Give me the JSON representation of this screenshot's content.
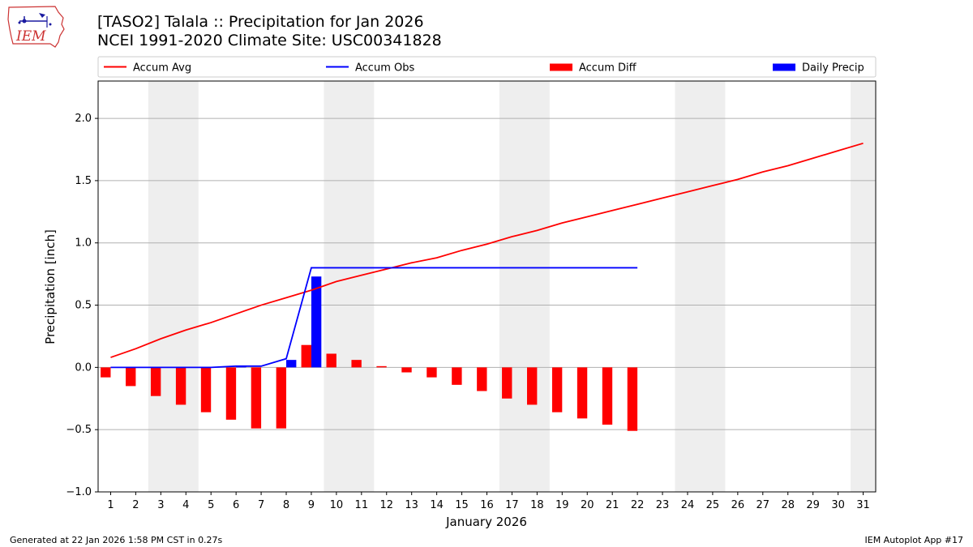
{
  "logo": {
    "text": "IEM"
  },
  "title": {
    "line1": "[TASO2] Talala :: Precipitation for Jan 2026",
    "line2": "NCEI 1991-2020 Climate Site: USC00341828"
  },
  "footer": {
    "left": "Generated at 22 Jan 2026 1:58 PM CST in 0.27s",
    "right": "IEM Autoplot App #17"
  },
  "chart_data": {
    "type": "bar",
    "xlabel": "January 2026",
    "ylabel": "Precipitation [inch]",
    "ylim": [
      -1.0,
      2.3
    ],
    "xlim": [
      0.5,
      31.5
    ],
    "yticks": [
      -1.0,
      -0.5,
      0.0,
      0.5,
      1.0,
      1.5,
      2.0
    ],
    "ytick_labels": [
      "−1.0",
      "−0.5",
      "0.0",
      "0.5",
      "1.0",
      "1.5",
      "2.0"
    ],
    "xticks": [
      1,
      2,
      3,
      4,
      5,
      6,
      7,
      8,
      9,
      10,
      11,
      12,
      13,
      14,
      15,
      16,
      17,
      18,
      19,
      20,
      21,
      22,
      23,
      24,
      25,
      26,
      27,
      28,
      29,
      30,
      31
    ],
    "grid": "horizontal",
    "weekend_shading": [
      [
        2.5,
        4.5
      ],
      [
        9.5,
        11.5
      ],
      [
        16.5,
        18.5
      ],
      [
        23.5,
        25.5
      ],
      [
        30.5,
        31.5
      ]
    ],
    "legend": [
      {
        "label": "Accum Avg",
        "kind": "line",
        "color": "#ff0000"
      },
      {
        "label": "Accum Obs",
        "kind": "line",
        "color": "#0000ff"
      },
      {
        "label": "Accum Diff",
        "kind": "bar",
        "color": "#ff0000"
      },
      {
        "label": "Daily Precip",
        "kind": "bar",
        "color": "#0000ff"
      }
    ],
    "legend_position": "top",
    "series": [
      {
        "name": "Accum Avg",
        "type": "line",
        "color": "#ff0000",
        "x": [
          1,
          2,
          3,
          4,
          5,
          6,
          7,
          8,
          9,
          10,
          11,
          12,
          13,
          14,
          15,
          16,
          17,
          18,
          19,
          20,
          21,
          22,
          23,
          24,
          25,
          26,
          27,
          28,
          29,
          30,
          31
        ],
        "values": [
          0.08,
          0.15,
          0.23,
          0.3,
          0.36,
          0.43,
          0.5,
          0.56,
          0.62,
          0.69,
          0.74,
          0.79,
          0.84,
          0.88,
          0.94,
          0.99,
          1.05,
          1.1,
          1.16,
          1.21,
          1.26,
          1.31,
          1.36,
          1.41,
          1.46,
          1.51,
          1.57,
          1.62,
          1.68,
          1.74,
          1.8
        ]
      },
      {
        "name": "Accum Obs",
        "type": "line",
        "color": "#0000ff",
        "x": [
          1,
          2,
          3,
          4,
          5,
          6,
          7,
          8,
          9,
          10,
          11,
          12,
          13,
          14,
          15,
          16,
          17,
          18,
          19,
          20,
          21,
          22
        ],
        "values": [
          0.0,
          0.0,
          0.0,
          0.0,
          0.0,
          0.01,
          0.01,
          0.07,
          0.8,
          0.8,
          0.8,
          0.8,
          0.8,
          0.8,
          0.8,
          0.8,
          0.8,
          0.8,
          0.8,
          0.8,
          0.8,
          0.8
        ]
      },
      {
        "name": "Accum Diff",
        "type": "bar",
        "color": "#ff0000",
        "offset": -0.2,
        "x": [
          1,
          2,
          3,
          4,
          5,
          6,
          7,
          8,
          9,
          10,
          11,
          12,
          13,
          14,
          15,
          16,
          17,
          18,
          19,
          20,
          21,
          22
        ],
        "values": [
          -0.08,
          -0.15,
          -0.23,
          -0.3,
          -0.36,
          -0.42,
          -0.49,
          -0.49,
          0.18,
          0.11,
          0.06,
          0.01,
          -0.04,
          -0.08,
          -0.14,
          -0.19,
          -0.25,
          -0.3,
          -0.36,
          -0.41,
          -0.46,
          -0.51
        ]
      },
      {
        "name": "Daily Precip",
        "type": "bar",
        "color": "#0000ff",
        "offset": 0.2,
        "x": [
          1,
          2,
          3,
          4,
          5,
          6,
          7,
          8,
          9,
          10,
          11,
          12,
          13,
          14,
          15,
          16,
          17,
          18,
          19,
          20,
          21,
          22
        ],
        "values": [
          0.0,
          0.0,
          0.0,
          0.0,
          0.0,
          0.01,
          0.0,
          0.06,
          0.73,
          0.0,
          0.0,
          0.0,
          0.0,
          0.0,
          0.0,
          0.0,
          0.0,
          0.0,
          0.0,
          0.0,
          0.0,
          0.0
        ]
      }
    ]
  }
}
